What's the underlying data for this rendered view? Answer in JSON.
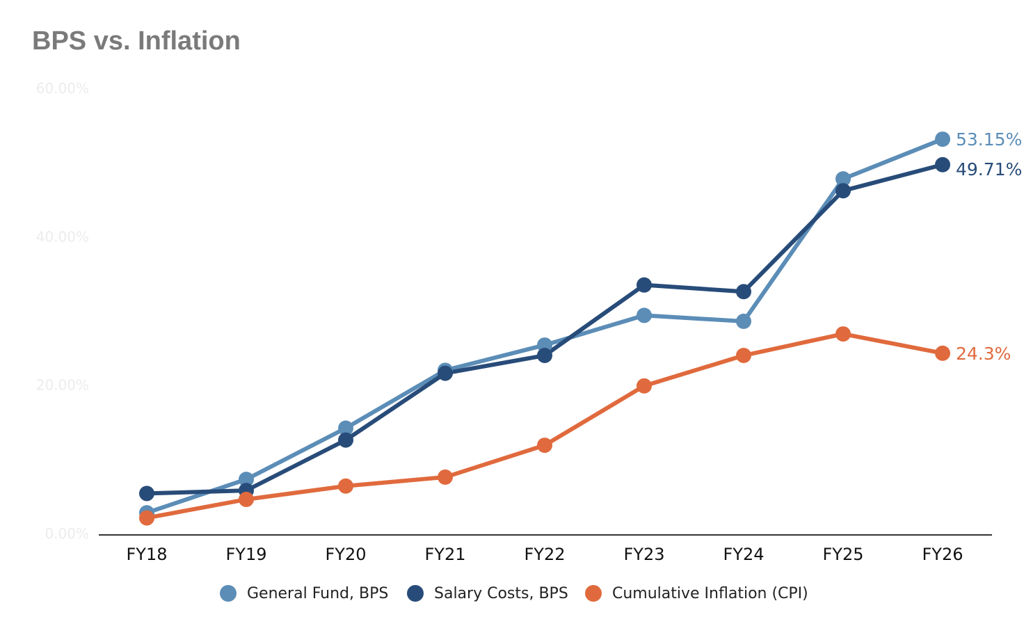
{
  "chart_data": {
    "type": "line",
    "title": "BPS vs. Inflation",
    "xlabel": "",
    "ylabel": "",
    "x": [
      "FY18",
      "FY19",
      "FY20",
      "FY21",
      "FY22",
      "FY23",
      "FY24",
      "FY25",
      "FY26"
    ],
    "y_ticks": [
      {
        "value": 0,
        "label": "0.00%"
      },
      {
        "value": 20,
        "label": "20.00%"
      },
      {
        "value": 40,
        "label": "40.00%"
      },
      {
        "value": 60,
        "label": "60.00%"
      }
    ],
    "ylim": [
      0,
      60
    ],
    "grid": false,
    "legend_position": "bottom",
    "series": [
      {
        "name": "General Fund, BPS",
        "color": "#5b8db7",
        "values": [
          2.8,
          7.3,
          14.2,
          22.0,
          25.4,
          29.4,
          28.6,
          47.8,
          53.15
        ],
        "end_label": "53.15%"
      },
      {
        "name": "Salary Costs, BPS",
        "color": "#284c79",
        "values": [
          5.4,
          5.8,
          12.6,
          21.6,
          24.0,
          33.5,
          32.6,
          46.2,
          49.71
        ],
        "end_label": "49.71%"
      },
      {
        "name": "Cumulative Inflation (CPI)",
        "color": "#e06a3d",
        "values": [
          2.1,
          4.6,
          6.4,
          7.6,
          11.9,
          19.9,
          24.0,
          26.9,
          24.3
        ],
        "end_label": "24.3%"
      }
    ]
  }
}
